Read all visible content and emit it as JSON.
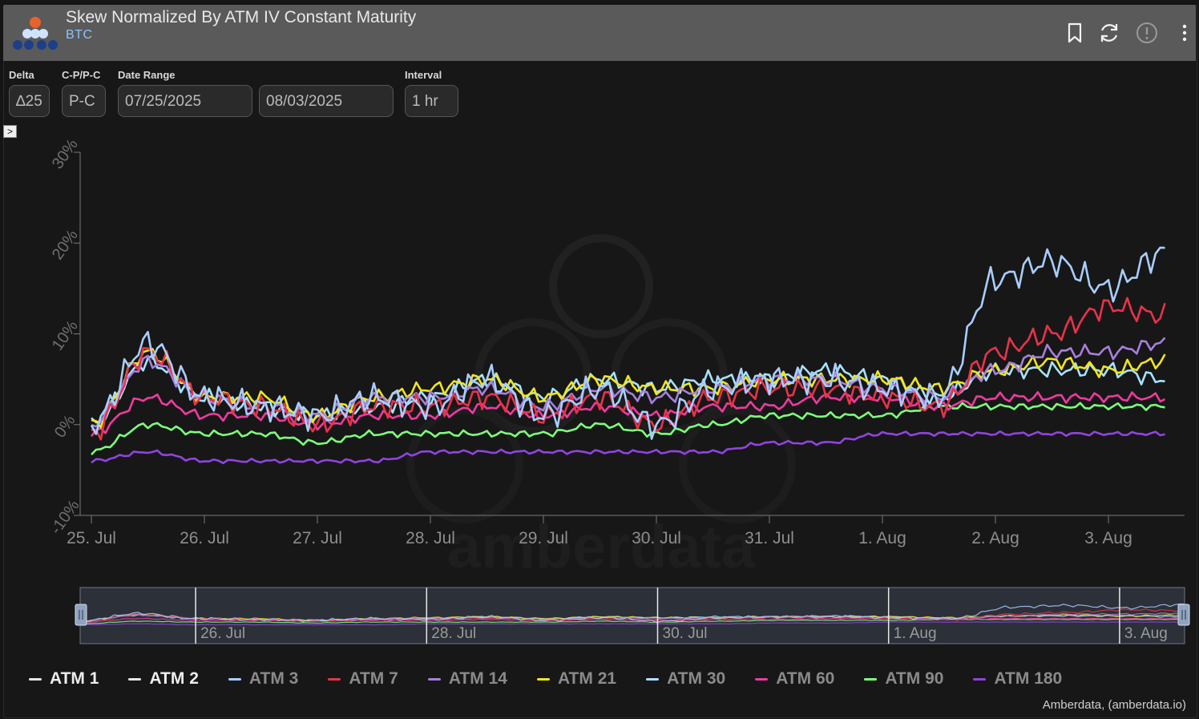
{
  "header": {
    "title": "Skew Normalized By ATM IV Constant Maturity",
    "subtitle": "BTC"
  },
  "controls": [
    {
      "label": "Delta",
      "value": "∆25"
    },
    {
      "label": "C-P/P-C",
      "value": "P-C"
    },
    {
      "label": "Date Range",
      "value": "07/25/2025"
    },
    {
      "label": "",
      "value": "08/03/2025"
    },
    {
      "label": "Interval",
      "value": "1 hr"
    }
  ],
  "watermark": "amberdata",
  "credit": "Amberdata, (amberdata.io)",
  "colors": {
    "ATM 1": "#e6e6e6",
    "ATM 2": "#e6e6e6",
    "ATM 3": "#a9ceff",
    "ATM 7": "#e8334a",
    "ATM 14": "#a77fdb",
    "ATM 21": "#f2e51c",
    "ATM 30": "#a6e3ff",
    "ATM 60": "#ef3aa0",
    "ATM 90": "#7dff7b",
    "ATM 180": "#9143e0"
  },
  "chart_data": {
    "type": "line",
    "xlabel": "",
    "ylabel": "",
    "ylim": [
      -10,
      30
    ],
    "yticks": [
      "-10%",
      "0%",
      "10%",
      "20%",
      "30%"
    ],
    "xticks": [
      "25. Jul",
      "26. Jul",
      "27. Jul",
      "28. Jul",
      "29. Jul",
      "30. Jul",
      "31. Jul",
      "1. Aug",
      "2. Aug",
      "3. Aug"
    ],
    "navigator_ticks": [
      "26. Jul",
      "28. Jul",
      "30. Jul",
      "1. Aug",
      "3. Aug"
    ],
    "x": [
      0,
      0.5,
      1,
      1.5,
      2,
      2.5,
      3,
      3.5,
      4,
      4.5,
      5,
      5.5,
      6,
      6.5,
      7,
      7.5,
      8,
      8.5,
      9,
      9.5
    ],
    "legend": [
      "ATM 1",
      "ATM 2",
      "ATM 3",
      "ATM 7",
      "ATM 14",
      "ATM 21",
      "ATM 30",
      "ATM 60",
      "ATM 90",
      "ATM 180"
    ],
    "series": [
      {
        "name": "ATM 3",
        "values": [
          0,
          9,
          3,
          2,
          1,
          3,
          2,
          5,
          1,
          4,
          0,
          4,
          5,
          5,
          4,
          3,
          16,
          18,
          15,
          19
        ]
      },
      {
        "name": "ATM 7",
        "values": [
          -1,
          8,
          3,
          2,
          0,
          2,
          2,
          3,
          1,
          3,
          0,
          3,
          4,
          4,
          3,
          2,
          8,
          10,
          13,
          12
        ]
      },
      {
        "name": "ATM 14",
        "values": [
          0,
          7,
          3,
          2,
          1,
          3,
          3,
          4,
          2,
          4,
          3,
          4,
          5,
          5,
          4,
          3,
          6,
          8,
          8,
          9
        ]
      },
      {
        "name": "ATM 21",
        "values": [
          0,
          8,
          3,
          3,
          1,
          3,
          4,
          5,
          3,
          5,
          4,
          4,
          5,
          5,
          5,
          4,
          6,
          7,
          6,
          7
        ]
      },
      {
        "name": "ATM 30",
        "values": [
          0,
          7,
          3,
          2,
          1,
          2,
          3,
          5,
          3,
          5,
          4,
          5,
          5,
          6,
          5,
          3,
          6,
          6,
          6,
          5
        ]
      },
      {
        "name": "ATM 60",
        "values": [
          -1,
          3,
          1,
          1,
          0,
          1,
          1,
          2,
          1,
          2,
          1,
          2,
          2,
          3,
          3,
          2,
          3,
          3,
          3,
          3
        ]
      },
      {
        "name": "ATM 90",
        "values": [
          -3,
          0,
          -1,
          -1,
          -2,
          -1,
          -1,
          -1,
          -1,
          0,
          -1,
          0,
          1,
          1,
          1,
          2,
          2,
          2,
          2,
          2
        ]
      },
      {
        "name": "ATM 180",
        "values": [
          -4,
          -3,
          -4,
          -4,
          -4,
          -4,
          -3,
          -3,
          -3,
          -3,
          -3,
          -3,
          -2,
          -2,
          -1,
          -1,
          -1,
          -1,
          -1,
          -1
        ]
      }
    ]
  }
}
